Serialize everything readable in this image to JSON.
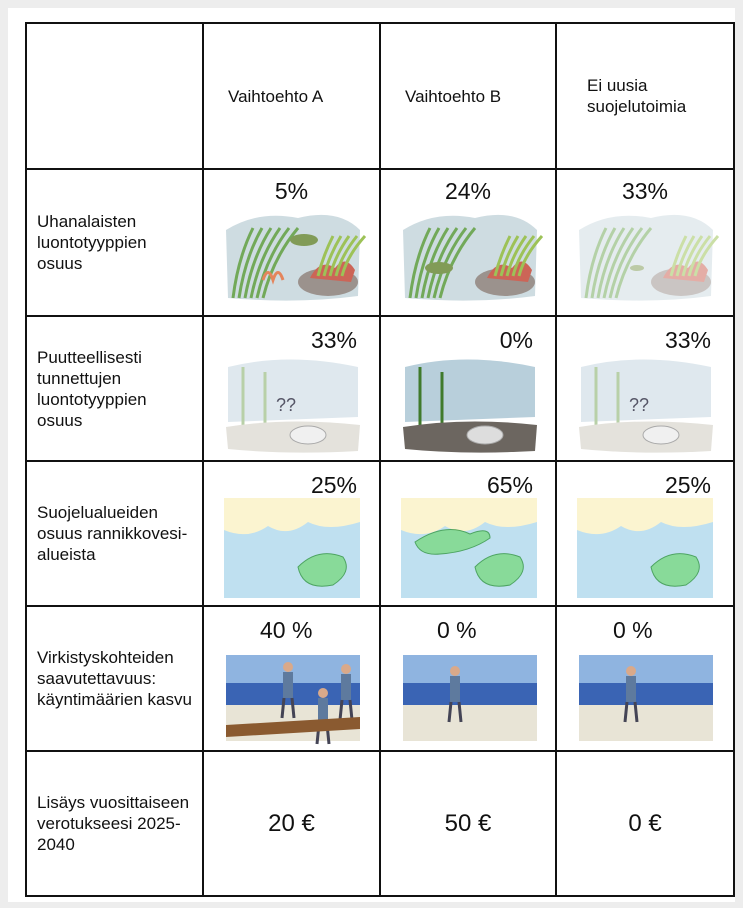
{
  "table": {
    "columns": [
      "Vaihtoehto A",
      "Vaihtoehto B",
      "Ei uusia suojelutoimia"
    ],
    "rows": [
      {
        "label": "Uhanalaisten luontotyyppien osuus",
        "values": [
          "5%",
          "24%",
          "33%"
        ]
      },
      {
        "label": "Puutteellisesti tunnettujen luontotyyppien osuus",
        "values": [
          "33%",
          "0%",
          "33%"
        ],
        "illustration_text": "??"
      },
      {
        "label": "Suojelualueiden osuus rannikkovesi-alueista",
        "values": [
          "25%",
          "65%",
          "25%"
        ]
      },
      {
        "label": "Virkistyskohteiden saavutettavuus: käyntimäärien kasvu",
        "values": [
          "40 %",
          "0 %",
          "0 %"
        ]
      },
      {
        "label": "Lisäys vuosittaiseen verotukseesi 2025-2040",
        "values": [
          "20 €",
          "50 €",
          "0 €"
        ]
      }
    ]
  }
}
